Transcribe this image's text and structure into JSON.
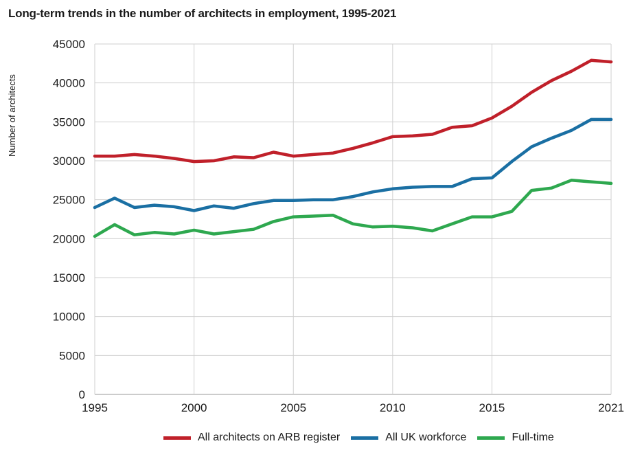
{
  "chart_data": {
    "type": "line",
    "title": "Long-term trends in the number of architects in employment, 1995-2021",
    "ylabel": "Number of architects",
    "xlabel": "",
    "xlim": [
      1995,
      2021
    ],
    "ylim": [
      0,
      45000
    ],
    "x_ticks": [
      1995,
      2000,
      2005,
      2010,
      2015,
      2021
    ],
    "y_ticks": [
      0,
      5000,
      10000,
      15000,
      20000,
      25000,
      30000,
      35000,
      40000,
      45000
    ],
    "grid": true,
    "legend_position": "bottom",
    "x": [
      1995,
      1996,
      1997,
      1998,
      1999,
      2000,
      2001,
      2002,
      2003,
      2004,
      2005,
      2006,
      2007,
      2008,
      2009,
      2010,
      2011,
      2012,
      2013,
      2014,
      2015,
      2016,
      2017,
      2018,
      2019,
      2020,
      2021
    ],
    "series": [
      {
        "name": "All architects on ARB register",
        "color": "#c0202a",
        "values": [
          30600,
          30600,
          30800,
          30600,
          30300,
          29900,
          30000,
          30500,
          30400,
          31100,
          30600,
          30800,
          31000,
          31600,
          32300,
          33100,
          33200,
          33400,
          34300,
          34500,
          35500,
          37000,
          38800,
          40300,
          41500,
          42900,
          42700
        ]
      },
      {
        "name": "All UK workforce",
        "color": "#1a6fa3",
        "values": [
          24000,
          25200,
          24000,
          24300,
          24100,
          23600,
          24200,
          23900,
          24500,
          24900,
          24900,
          25000,
          25000,
          25400,
          26000,
          26400,
          26600,
          26700,
          26700,
          27700,
          27800,
          29900,
          31800,
          32900,
          33900,
          35300,
          35300
        ]
      },
      {
        "name": "Full-time",
        "color": "#2ea84f",
        "values": [
          20300,
          21800,
          20500,
          20800,
          20600,
          21100,
          20600,
          20900,
          21200,
          22200,
          22800,
          22900,
          23000,
          21900,
          21500,
          21600,
          21400,
          21000,
          21900,
          22800,
          22800,
          23500,
          26200,
          26500,
          27500,
          27300,
          27100
        ]
      }
    ]
  }
}
